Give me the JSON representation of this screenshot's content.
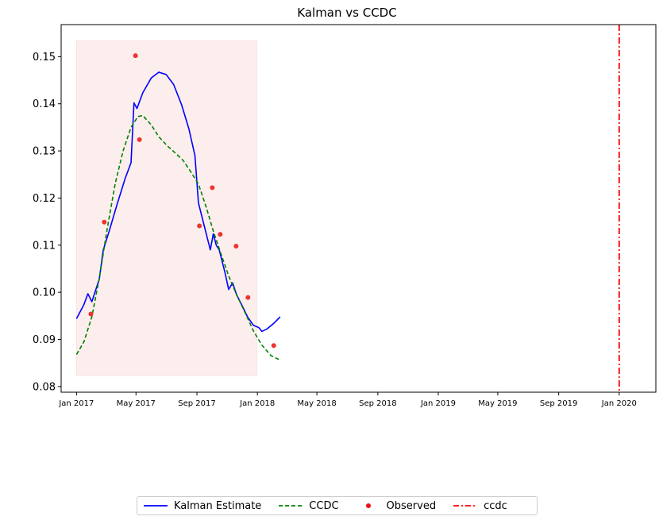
{
  "chart_data": {
    "type": "line",
    "title": "Kalman vs CCDC",
    "xlabel": "",
    "ylabel": "",
    "x_range": [
      "2016-12-01",
      "2020-03-15"
    ],
    "ylim": [
      0.0788,
      0.1568
    ],
    "x_ticks": [
      {
        "date": "2017-01-01",
        "label": "Jan 2017"
      },
      {
        "date": "2017-05-01",
        "label": "May 2017"
      },
      {
        "date": "2017-09-01",
        "label": "Sep 2017"
      },
      {
        "date": "2018-01-01",
        "label": "Jan 2018"
      },
      {
        "date": "2018-05-01",
        "label": "May 2018"
      },
      {
        "date": "2018-09-01",
        "label": "Sep 2018"
      },
      {
        "date": "2019-01-01",
        "label": "Jan 2019"
      },
      {
        "date": "2019-05-01",
        "label": "May 2019"
      },
      {
        "date": "2019-09-01",
        "label": "Sep 2019"
      },
      {
        "date": "2020-01-01",
        "label": "Jan 2020"
      }
    ],
    "y_ticks": [
      {
        "value": 0.08,
        "label": "0.08"
      },
      {
        "value": 0.09,
        "label": "0.09"
      },
      {
        "value": 0.1,
        "label": "0.10"
      },
      {
        "value": 0.11,
        "label": "0.11"
      },
      {
        "value": 0.12,
        "label": "0.12"
      },
      {
        "value": 0.13,
        "label": "0.13"
      },
      {
        "value": 0.14,
        "label": "0.14"
      },
      {
        "value": 0.15,
        "label": "0.15"
      }
    ],
    "shaded_region": {
      "x_start": "2017-01-01",
      "x_end": "2017-12-31",
      "y_start": 0.0823,
      "y_end": 0.1534,
      "color": "#fbeeec"
    },
    "series": [
      {
        "name": "Kalman Estimate",
        "style": "solid",
        "color": "#0000ff",
        "points": [
          [
            "2017-01-01",
            0.0944
          ],
          [
            "2017-01-16",
            0.0974
          ],
          [
            "2017-01-24",
            0.0997
          ],
          [
            "2017-02-01",
            0.098
          ],
          [
            "2017-02-16",
            0.1028
          ],
          [
            "2017-02-24",
            0.109
          ],
          [
            "2017-03-08",
            0.113
          ],
          [
            "2017-03-24",
            0.1187
          ],
          [
            "2017-04-09",
            0.1241
          ],
          [
            "2017-04-21",
            0.1275
          ],
          [
            "2017-04-27",
            0.1402
          ],
          [
            "2017-05-03",
            0.139
          ],
          [
            "2017-05-15",
            0.1424
          ],
          [
            "2017-06-01",
            0.1455
          ],
          [
            "2017-06-16",
            0.1467
          ],
          [
            "2017-07-01",
            0.1462
          ],
          [
            "2017-07-16",
            0.1441
          ],
          [
            "2017-08-01",
            0.1398
          ],
          [
            "2017-08-16",
            0.1346
          ],
          [
            "2017-08-28",
            0.129
          ],
          [
            "2017-09-04",
            0.119
          ],
          [
            "2017-09-16",
            0.114
          ],
          [
            "2017-09-28",
            0.109
          ],
          [
            "2017-10-04",
            0.1124
          ],
          [
            "2017-10-10",
            0.11
          ],
          [
            "2017-10-16",
            0.109
          ],
          [
            "2017-10-28",
            0.104
          ],
          [
            "2017-11-04",
            0.1006
          ],
          [
            "2017-11-12",
            0.102
          ],
          [
            "2017-11-20",
            0.0995
          ],
          [
            "2017-12-01",
            0.0972
          ],
          [
            "2017-12-12",
            0.0948
          ],
          [
            "2017-12-24",
            0.093
          ],
          [
            "2018-01-04",
            0.0925
          ],
          [
            "2018-01-10",
            0.0917
          ],
          [
            "2018-01-20",
            0.0922
          ],
          [
            "2018-02-04",
            0.0935
          ],
          [
            "2018-02-16",
            0.0948
          ]
        ]
      },
      {
        "name": "CCDC",
        "style": "dashed",
        "color": "#008000",
        "points": [
          [
            "2017-01-01",
            0.0868
          ],
          [
            "2017-01-16",
            0.0895
          ],
          [
            "2017-02-01",
            0.0948
          ],
          [
            "2017-02-16",
            0.103
          ],
          [
            "2017-03-04",
            0.1135
          ],
          [
            "2017-03-20",
            0.123
          ],
          [
            "2017-04-05",
            0.13
          ],
          [
            "2017-04-21",
            0.135
          ],
          [
            "2017-05-05",
            0.1373
          ],
          [
            "2017-05-15",
            0.1375
          ],
          [
            "2017-06-01",
            0.1355
          ],
          [
            "2017-06-16",
            0.133
          ],
          [
            "2017-07-04",
            0.131
          ],
          [
            "2017-07-20",
            0.1295
          ],
          [
            "2017-08-04",
            0.128
          ],
          [
            "2017-08-20",
            0.1255
          ],
          [
            "2017-09-04",
            0.123
          ],
          [
            "2017-09-20",
            0.118
          ],
          [
            "2017-10-04",
            0.113
          ],
          [
            "2017-10-20",
            0.108
          ],
          [
            "2017-11-04",
            0.1035
          ],
          [
            "2017-11-20",
            0.0995
          ],
          [
            "2017-12-08",
            0.0955
          ],
          [
            "2017-12-24",
            0.0918
          ],
          [
            "2018-01-10",
            0.0888
          ],
          [
            "2018-01-28",
            0.0866
          ],
          [
            "2018-02-16",
            0.0856
          ]
        ]
      }
    ],
    "observed": {
      "name": "Observed",
      "color": "#ee3333",
      "points": [
        [
          "2017-01-30",
          0.0954
        ],
        [
          "2017-02-26",
          0.1149
        ],
        [
          "2017-04-30",
          0.1502
        ],
        [
          "2017-05-08",
          0.1324
        ],
        [
          "2017-09-06",
          0.1141
        ],
        [
          "2017-10-02",
          0.1222
        ],
        [
          "2017-10-18",
          0.1123
        ],
        [
          "2017-11-19",
          0.1098
        ],
        [
          "2017-12-13",
          0.0989
        ],
        [
          "2018-02-03",
          0.0887
        ]
      ]
    },
    "vertical_line": {
      "name": "ccdc",
      "style": "dashdot",
      "color": "#ff0000",
      "x": "2020-01-01"
    },
    "legend_position": "bottom-center",
    "grid": false
  }
}
